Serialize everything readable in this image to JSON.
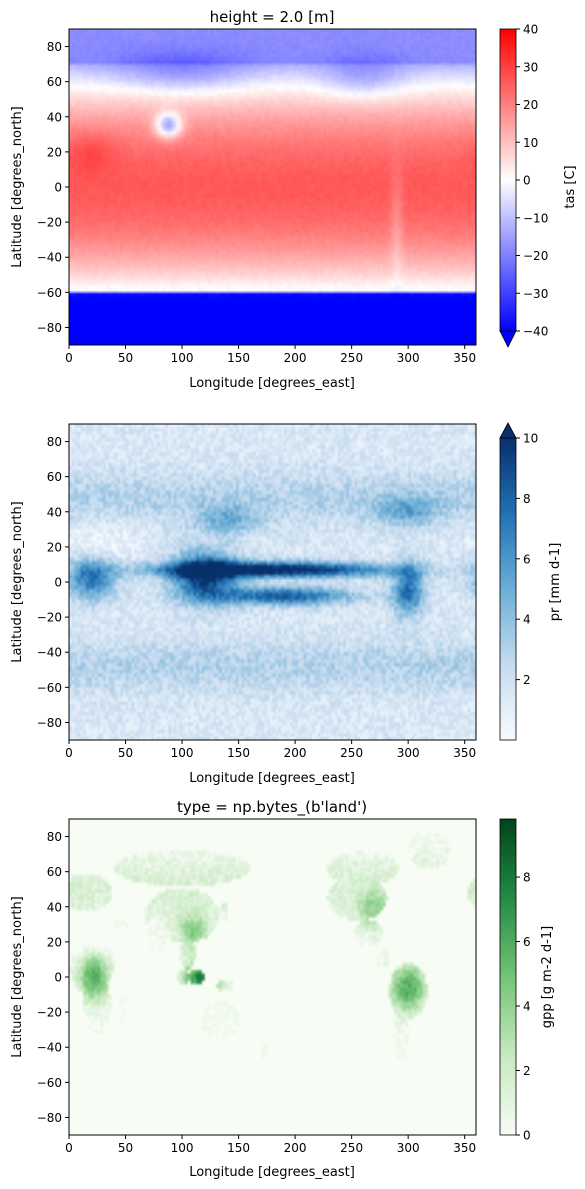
{
  "figure": {
    "panels": [
      {
        "title": "height = 2.0 [m]",
        "cbar_label": "tas [C]"
      },
      {
        "title": "",
        "cbar_label": "pr [mm d-1]"
      },
      {
        "title": "type = np.bytes_(b'land')",
        "cbar_label": "gpp [g m-2 d-1]"
      }
    ]
  },
  "chart_data": [
    {
      "type": "heatmap",
      "title": "height = 2.0 [m]",
      "xlabel": "Longitude [degrees_east]",
      "ylabel": "Latitude [degrees_north]",
      "xlim": [
        0,
        360
      ],
      "ylim": [
        -90,
        90
      ],
      "xticks": [
        0,
        50,
        100,
        150,
        200,
        250,
        300,
        350
      ],
      "yticks": [
        -80,
        -60,
        -40,
        -20,
        0,
        20,
        40,
        60,
        80
      ],
      "colormap": "bwr",
      "colorbar": {
        "label": "tas [C]",
        "min": -40,
        "max": 40,
        "ticks": [
          -40,
          -30,
          -20,
          -10,
          0,
          10,
          20,
          30,
          40
        ],
        "extend": "min"
      },
      "field": "near-surface air temperature: ~25 C in tropics, near 0 C around 55-60 latitude, below -40 C over Antarctica, cold Tibetan plateau near 35N 90E",
      "colors": {
        "min": "#0000ff",
        "mid": "#ffffff",
        "max": "#ff0000"
      }
    },
    {
      "type": "heatmap",
      "title": "",
      "xlabel": "Longitude [degrees_east]",
      "ylabel": "Latitude [degrees_north]",
      "xlim": [
        0,
        360
      ],
      "ylim": [
        -90,
        90
      ],
      "xticks": [
        0,
        50,
        100,
        150,
        200,
        250,
        300,
        350
      ],
      "yticks": [
        -80,
        -60,
        -40,
        -20,
        0,
        20,
        40,
        60,
        80
      ],
      "colormap": "Blues",
      "colorbar": {
        "label": "pr [mm d-1]",
        "min": 0,
        "max": 10,
        "ticks": [
          2,
          4,
          6,
          8,
          10
        ],
        "extend": "max"
      },
      "field": "precipitation: intertropical convergence zone band near 5-10N, South Pacific convergence zone, storm tracks near 40-60 latitude",
      "colors": {
        "min": "#f7fbff",
        "max": "#08306b"
      }
    },
    {
      "type": "heatmap",
      "title": "type = np.bytes_(b'land')",
      "xlabel": "Longitude [degrees_east]",
      "ylabel": "Latitude [degrees_north]",
      "xlim": [
        0,
        360
      ],
      "ylim": [
        -90,
        90
      ],
      "xticks": [
        0,
        50,
        100,
        150,
        200,
        250,
        300,
        350
      ],
      "yticks": [
        -80,
        -60,
        -40,
        -20,
        0,
        20,
        40,
        60,
        80
      ],
      "colormap": "Greens",
      "colorbar": {
        "label": "gpp [g m-2 d-1]",
        "min": 0,
        "max": 9.8,
        "ticks": [
          0,
          2,
          4,
          6,
          8
        ],
        "extend": "neither"
      },
      "field": "gross primary production over land only: highest in Maritime Continent, Amazon and Congo rainforests, low over deserts, zero over ocean",
      "colors": {
        "min": "#f7fcf5",
        "max": "#00441b"
      }
    }
  ]
}
